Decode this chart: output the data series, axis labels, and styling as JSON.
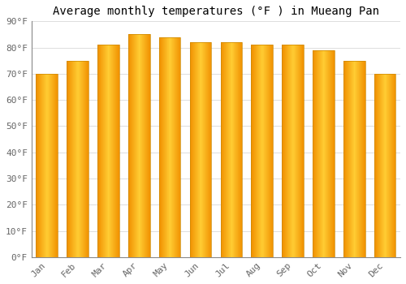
{
  "title": "Average monthly temperatures (°F ) in Mueang Pan",
  "months": [
    "Jan",
    "Feb",
    "Mar",
    "Apr",
    "May",
    "Jun",
    "Jul",
    "Aug",
    "Sep",
    "Oct",
    "Nov",
    "Dec"
  ],
  "values": [
    70,
    75,
    81,
    85,
    84,
    82,
    82,
    81,
    81,
    79,
    75,
    70
  ],
  "bar_color_main": "#FFA500",
  "bar_color_light": "#FFD966",
  "bar_color_dark": "#E08000",
  "background_color": "#FFFFFF",
  "grid_color": "#DDDDDD",
  "ylim": [
    0,
    90
  ],
  "yticks": [
    0,
    10,
    20,
    30,
    40,
    50,
    60,
    70,
    80,
    90
  ],
  "ytick_labels": [
    "0°F",
    "10°F",
    "20°F",
    "30°F",
    "40°F",
    "50°F",
    "60°F",
    "70°F",
    "80°F",
    "90°F"
  ],
  "title_fontsize": 10,
  "tick_fontsize": 8,
  "font_family": "monospace"
}
